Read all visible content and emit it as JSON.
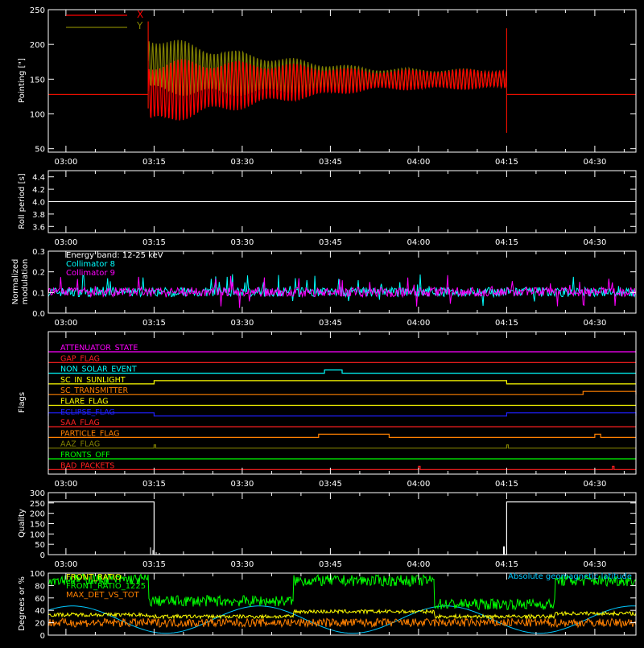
{
  "chart_data": [
    {
      "type": "line",
      "ylabel": "Pointing [\"]",
      "ylim": [
        45,
        250
      ],
      "yticks": [
        50,
        100,
        150,
        200,
        250
      ],
      "xtick_labels": [
        "03:00",
        "03:15",
        "03:30",
        "03:45",
        "04:00",
        "04:15",
        "04:30"
      ],
      "legend": [
        "X",
        "Y"
      ],
      "legend_position": "top-left",
      "colors": {
        "x": "#ff0000",
        "y": "#808000",
        "axes": "#ffffff"
      },
      "series": [
        {
          "name": "X",
          "baseline": 128,
          "active_start": "03:14",
          "active_end": "04:15",
          "start_value": 128,
          "end_value": 150,
          "start_amplitude": 50,
          "end_amplitude": 15
        },
        {
          "name": "Y",
          "baseline": 128,
          "active_start": "03:14",
          "active_end": "04:15",
          "start_value": 172,
          "end_value": 150,
          "start_amplitude": 45,
          "end_amplitude": 15
        }
      ]
    },
    {
      "type": "line",
      "ylabel": "Roll period [s]",
      "ylim": [
        3.5,
        4.5
      ],
      "yticks": [
        3.6,
        3.8,
        4.0,
        4.2,
        4.4
      ],
      "xtick_labels": [
        "03:00",
        "03:15",
        "03:30",
        "03:45",
        "04:00",
        "04:15",
        "04:30"
      ],
      "series": [
        {
          "value": 4.0,
          "color": "#ffffff"
        }
      ]
    },
    {
      "type": "line",
      "ylabel": [
        "Normalized",
        "modulation"
      ],
      "ylim": [
        0,
        0.3
      ],
      "yticks": [
        0.0,
        0.1,
        0.2,
        0.3
      ],
      "xtick_labels": [
        "03:00",
        "03:15",
        "03:30",
        "03:45",
        "04:00",
        "04:15",
        "04:30"
      ],
      "legend": [
        "Energy band: 12-25 keV",
        "Collimator 8",
        "Collimator 9"
      ],
      "legend_colors": [
        "#ffffff",
        "#00ffff",
        "#ff00ff"
      ],
      "series": [
        {
          "name": "Collimator 8",
          "color": "#00ffff",
          "mean": 0.1,
          "spread": 0.02
        },
        {
          "name": "Collimator 9",
          "color": "#ff00ff",
          "mean": 0.1,
          "spread": 0.02
        }
      ]
    },
    {
      "type": "line",
      "ylabel": "Flags",
      "xtick_labels": [
        "03:00",
        "03:15",
        "03:30",
        "03:45",
        "04:00",
        "04:15",
        "04:30"
      ],
      "flags": [
        {
          "label": "ATTENUATOR_STATE",
          "color": "#ff00ff",
          "on": []
        },
        {
          "label": "GAP_FLAG",
          "color": "#ff2020",
          "on": []
        },
        {
          "label": "NON_SOLAR_EVENT",
          "color": "#00ffff",
          "on": [
            [
              "03:44",
              "03:47"
            ]
          ]
        },
        {
          "label": "SC_IN_SUNLIGHT",
          "color": "#ffff00",
          "on": [
            [
              "03:15",
              "04:15"
            ]
          ]
        },
        {
          "label": "SC_TRANSMITTER",
          "color": "#ff8000",
          "on": [
            [
              "04:28",
              "04:37"
            ]
          ]
        },
        {
          "label": "FLARE_FLAG",
          "color": "#ffff00",
          "on": []
        },
        {
          "label": "ECLIPSE_FLAG",
          "color": "#2020ff",
          "on": [
            [
              "02:57",
              "03:15"
            ],
            [
              "04:15",
              "04:37"
            ]
          ]
        },
        {
          "label": "SAA_FLAG",
          "color": "#ff2020",
          "on": []
        },
        {
          "label": "PARTICLE_FLAG",
          "color": "#ff8000",
          "on": [
            [
              "03:43",
              "03:55"
            ],
            [
              "04:30",
              "04:31"
            ]
          ]
        },
        {
          "label": "AAZ_FLAG",
          "color": "#808000",
          "on": [
            [
              "03:15",
              "03:15"
            ],
            [
              "04:15",
              "04:15"
            ]
          ]
        },
        {
          "label": "FRONTS_OFF",
          "color": "#00ff00",
          "on": []
        },
        {
          "label": "BAD_PACKETS",
          "color": "#ff2020",
          "on": [
            [
              "04:00",
              "04:00"
            ],
            [
              "04:33",
              "04:33"
            ]
          ]
        }
      ]
    },
    {
      "type": "line",
      "ylabel": "Quality",
      "ylim": [
        0,
        300
      ],
      "yticks": [
        0,
        50,
        100,
        150,
        200,
        250,
        300
      ],
      "xtick_labels": [
        "03:00",
        "03:15",
        "03:30",
        "03:45",
        "04:00",
        "04:15",
        "04:30"
      ],
      "series": [
        {
          "color": "#ffffff",
          "segments": [
            {
              "start": "02:57",
              "end": "03:15",
              "value": 255
            },
            {
              "start": "03:15",
              "end": "04:15",
              "value": 0
            },
            {
              "start": "04:15",
              "end": "04:37",
              "value": 255
            }
          ]
        }
      ]
    },
    {
      "type": "line",
      "ylabel": "Degrees or %",
      "ylim": [
        0,
        100
      ],
      "yticks": [
        0,
        20,
        40,
        60,
        80,
        100
      ],
      "legend": [
        "FRONT_RATIO",
        "FRONT_RATIO_1225",
        "MAX_DET_VS_TOT"
      ],
      "legend_colors": [
        "#ffff00",
        "#00ff00",
        "#ff8000"
      ],
      "annotation": "Absolute geomagnetic latitude",
      "annotation_color": "#00c8ff",
      "series": [
        {
          "name": "FRONT_RATIO",
          "color": "#ffff00"
        },
        {
          "name": "FRONT_RATIO_1225",
          "color": "#00ff00"
        },
        {
          "name": "MAX_DET_VS_TOT",
          "color": "#ff8000"
        },
        {
          "name": "Absolute geomagnetic latitude",
          "color": "#00c8ff"
        }
      ]
    }
  ]
}
